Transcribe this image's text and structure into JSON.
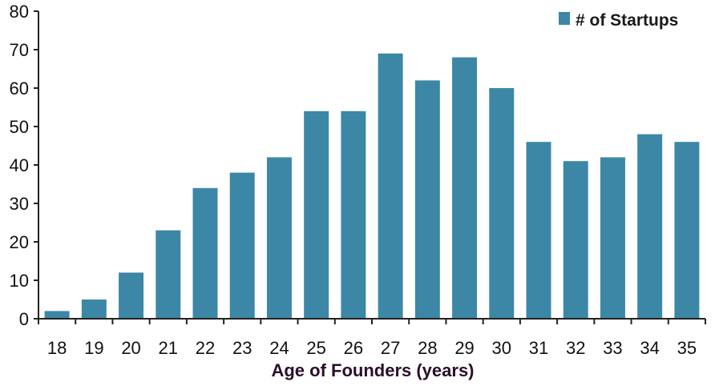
{
  "chart_data": {
    "type": "bar",
    "categories": [
      "18",
      "19",
      "20",
      "21",
      "22",
      "23",
      "24",
      "25",
      "26",
      "27",
      "28",
      "29",
      "30",
      "31",
      "32",
      "33",
      "34",
      "35"
    ],
    "series": [
      {
        "name": "# of Startups",
        "values": [
          2,
          5,
          12,
          23,
          34,
          38,
          42,
          54,
          54,
          69,
          62,
          68,
          60,
          46,
          41,
          42,
          48,
          46
        ]
      }
    ],
    "title": "",
    "xlabel": "Age of Founders (years)",
    "ylabel": "",
    "ylim": [
      0,
      80
    ],
    "yticks": [
      0,
      10,
      20,
      30,
      40,
      50,
      60,
      70,
      80
    ],
    "grid": false,
    "legend_position": "top-right",
    "colors": {
      "bar": "#3c87a6",
      "axis": "#222222"
    }
  }
}
